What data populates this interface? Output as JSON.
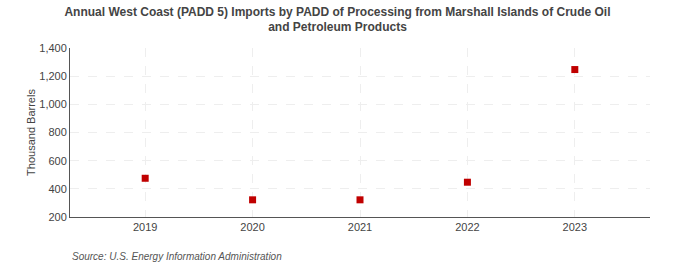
{
  "chart_data": {
    "type": "scatter",
    "title": "Annual West Coast (PADD 5) Imports by PADD of Processing from Marshall Islands of Crude Oil\nand Petroleum Products",
    "ylabel": "Thousand Barrels",
    "source": "Source: U.S. Energy Information Administration",
    "x": [
      2019,
      2020,
      2021,
      2022,
      2023
    ],
    "values": [
      475,
      322,
      322,
      447,
      1247
    ],
    "xlim": [
      2018.3,
      2023.7
    ],
    "xticks": [
      2019,
      2020,
      2021,
      2022,
      2023
    ],
    "ylim": [
      200,
      1400
    ],
    "yticks": [
      200,
      400,
      600,
      800,
      {
        "value": 1000,
        "label": "1,000"
      },
      {
        "value": 1200,
        "label": "1,200"
      },
      {
        "value": 1400,
        "label": "1,400"
      }
    ],
    "color": "#c00000",
    "marker": "square",
    "grid": true
  }
}
